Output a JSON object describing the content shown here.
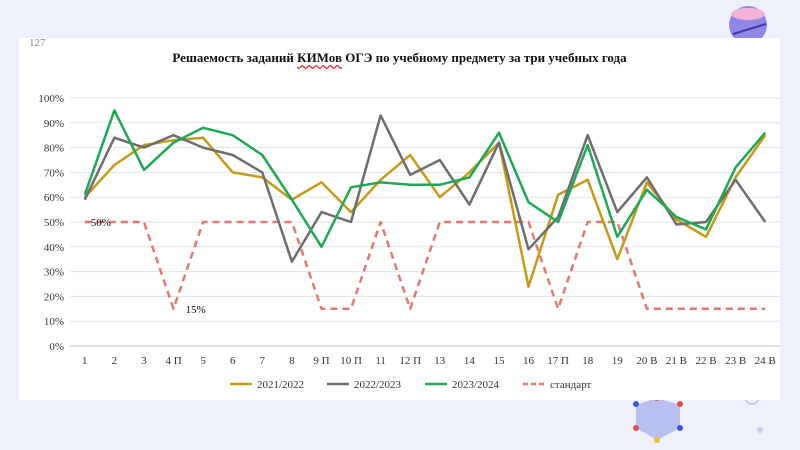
{
  "page_number": "127",
  "title_parts": [
    "Решаемость заданий ",
    "КИМов",
    " ОГЭ по учебному предмету за три учебных года"
  ],
  "colors": {
    "series_2021": "#c49a1a",
    "series_2022": "#6e6e6e",
    "series_2023": "#1fa855",
    "standard": "#e07a72",
    "grid": "#e3e3e3",
    "axis": "#bdbdbd"
  },
  "chart_data": {
    "type": "line",
    "title": "Решаемость заданий КИМов ОГЭ по учебному предмету за три учебных года",
    "xlabel": "",
    "ylabel": "",
    "ylim": [
      0,
      100
    ],
    "y_ticks": [
      "0%",
      "10%",
      "20%",
      "30%",
      "40%",
      "50%",
      "60%",
      "70%",
      "80%",
      "90%",
      "100%"
    ],
    "categories": [
      "1",
      "2",
      "3",
      "4 П",
      "5",
      "6",
      "7",
      "8",
      "9 П",
      "10 П",
      "11",
      "12 П",
      "13",
      "14",
      "15",
      "16",
      "17 П",
      "18",
      "19",
      "20 В",
      "21 В",
      "22 В",
      "23 В",
      "24 В"
    ],
    "series": [
      {
        "name": "2021/2022",
        "color": "#c49a1a",
        "dashed": false,
        "values": [
          60,
          73,
          81,
          83,
          84,
          70,
          68,
          59,
          66,
          54,
          67,
          77,
          60,
          70,
          82,
          24,
          61,
          67,
          35,
          66,
          51,
          44,
          68,
          85
        ]
      },
      {
        "name": "2022/2023",
        "color": "#6e6e6e",
        "dashed": false,
        "values": [
          59,
          84,
          80,
          85,
          80,
          77,
          70,
          34,
          54,
          50,
          93,
          69,
          75,
          57,
          82,
          39,
          52,
          85,
          54,
          68,
          49,
          50,
          67,
          50
        ]
      },
      {
        "name": "2023/2024",
        "color": "#1fa855",
        "dashed": false,
        "values": [
          61,
          95,
          71,
          82,
          88,
          85,
          77,
          59,
          40,
          64,
          66,
          65,
          65,
          68,
          86,
          58,
          50,
          81,
          44,
          63,
          52,
          47,
          72,
          86
        ]
      },
      {
        "name": "стандарт",
        "color": "#e07a72",
        "dashed": true,
        "values": [
          50,
          50,
          50,
          15,
          50,
          50,
          50,
          50,
          15,
          15,
          50,
          15,
          50,
          50,
          50,
          50,
          15,
          50,
          50,
          15,
          15,
          15,
          15,
          15
        ]
      }
    ],
    "legend_position": "bottom",
    "annotations": [
      "50%",
      "15%"
    ],
    "grid": true
  }
}
